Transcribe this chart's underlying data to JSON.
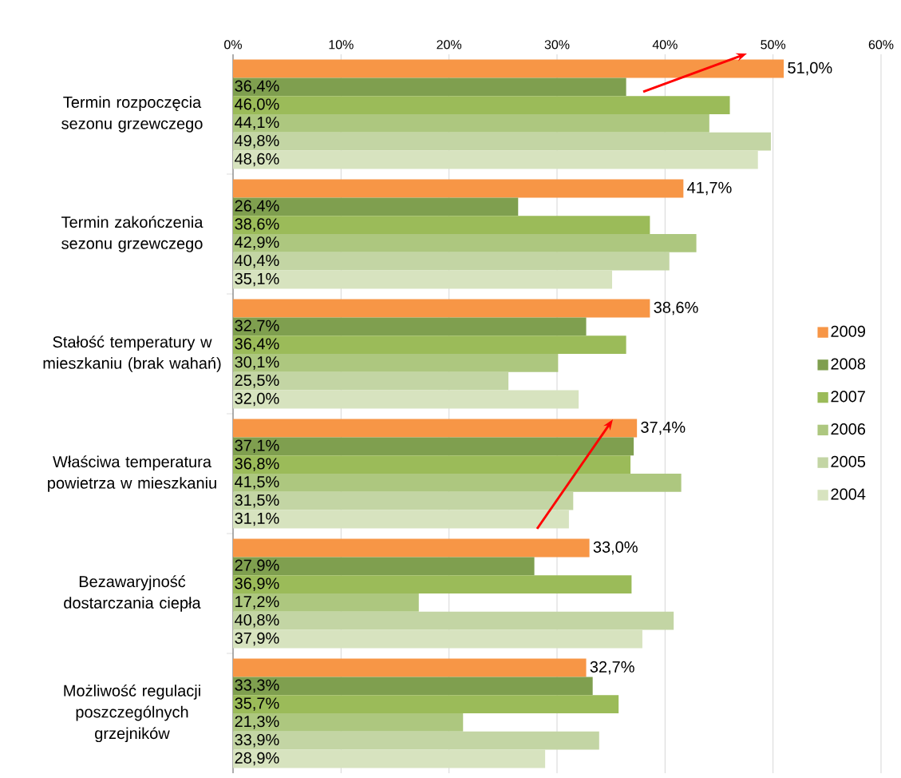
{
  "chart_data": {
    "type": "bar",
    "orientation": "horizontal",
    "categories": [
      "Termin rozpoczęcia sezonu grzewczego",
      "Termin zakończenia sezonu grzewczego",
      "Stałość temperatury w mieszkaniu (brak wahań)",
      "Właściwa temperatura powietrza w mieszkaniu",
      "Bezawaryjność dostarczania ciepła",
      "Możliwość regulacji poszczególnych grzejników"
    ],
    "series": [
      {
        "name": "2009",
        "color": "#f79646",
        "values": [
          51.0,
          41.7,
          38.6,
          37.4,
          33.0,
          32.7
        ],
        "value_labels": [
          "51,0%",
          "41,7%",
          "38,6%",
          "37,4%",
          "33,0%",
          "32,7%"
        ]
      },
      {
        "name": "2008",
        "color": "#7f9f4f",
        "values": [
          36.4,
          26.4,
          32.7,
          37.1,
          27.9,
          33.3
        ],
        "value_labels": [
          "36,4%",
          "26,4%",
          "32,7%",
          "37,1%",
          "27,9%",
          "33,3%"
        ]
      },
      {
        "name": "2007",
        "color": "#9bbb59",
        "values": [
          46.0,
          38.6,
          36.4,
          36.8,
          36.9,
          35.7
        ],
        "value_labels": [
          "46,0%",
          "38,6%",
          "36,4%",
          "36,8%",
          "36,9%",
          "35,7%"
        ]
      },
      {
        "name": "2006",
        "color": "#adc77f",
        "values": [
          44.1,
          42.9,
          30.1,
          41.5,
          17.2,
          21.3
        ],
        "value_labels": [
          "44,1%",
          "42,9%",
          "30,1%",
          "41,5%",
          "17,2%",
          "21,3%"
        ]
      },
      {
        "name": "2005",
        "color": "#c3d5a4",
        "values": [
          49.8,
          40.4,
          25.5,
          31.5,
          40.8,
          33.9
        ],
        "value_labels": [
          "49,8%",
          "40,4%",
          "25,5%",
          "31,5%",
          "40,8%",
          "33,9%"
        ]
      },
      {
        "name": "2004",
        "color": "#d7e3bf",
        "values": [
          48.6,
          35.1,
          32.0,
          31.1,
          37.9,
          28.9
        ],
        "value_labels": [
          "48,6%",
          "35,1%",
          "32,0%",
          "31,1%",
          "37,9%",
          "28,9%"
        ]
      }
    ],
    "xlim": [
      0,
      60
    ],
    "xticks": [
      {
        "value": 0,
        "label": "0%"
      },
      {
        "value": 10,
        "label": "10%"
      },
      {
        "value": 20,
        "label": "20%"
      },
      {
        "value": 30,
        "label": "30%"
      },
      {
        "value": 40,
        "label": "40%"
      },
      {
        "value": 50,
        "label": "50%"
      },
      {
        "value": 60,
        "label": "60%"
      }
    ],
    "grid": "x",
    "legend": "right"
  }
}
